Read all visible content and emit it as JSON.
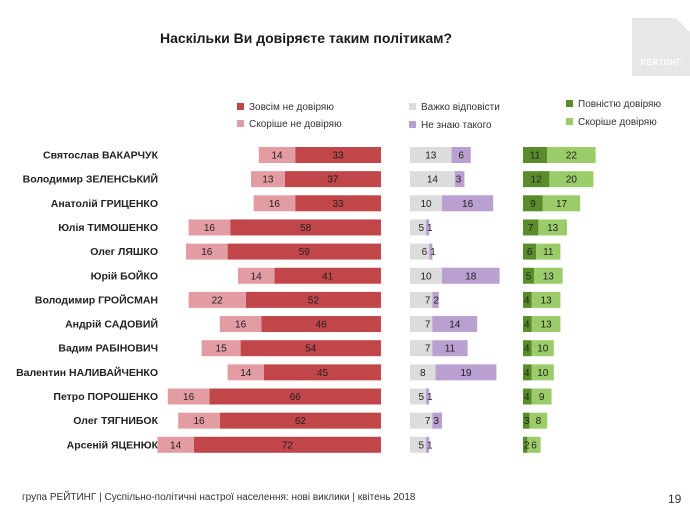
{
  "title": "Наскільки Ви довіряєте таким політикам?",
  "logo_text": "РЕЙТИНГ",
  "footer": "група РЕЙТИНГ  |  Суспільно-політичні настрої населення: нові виклики  |  квітень 2018",
  "page_number": "19",
  "colors": {
    "distrust_full": "#c0464a",
    "distrust_rather": "#e39ca1",
    "hard_to_say": "#dcdcdc",
    "dont_know": "#b9a0d0",
    "trust_full": "#5b8c2c",
    "trust_rather": "#9ccc6a"
  },
  "legend": {
    "distrust_full": "Зовсім не довіряю",
    "distrust_rather": "Скоріше не довіряю",
    "hard_to_say": "Важко відповісти",
    "dont_know": "Не знаю такого",
    "trust_full": "Повністю довіряю",
    "trust_rather": "Скоріше довіряю"
  },
  "chart_data": {
    "type": "bar",
    "title": "Наскільки Ви довіряєте таким політикам?",
    "orientation": "horizontal",
    "stacking": "stacked",
    "categories": [
      "Святослав ВАКАРЧУК",
      "Володимир ЗЕЛЕНСЬКИЙ",
      "Анатолій ГРИЦЕНКО",
      "Юлія ТИМОШЕНКО",
      "Олег ЛЯШКО",
      "Юрій БОЙКО",
      "Володимир ГРОЙСМАН",
      "Андрій САДОВИЙ",
      "Вадим РАБІНОВИЧ",
      "Валентин НАЛИВАЙЧЕНКО",
      "Петро ПОРОШЕНКО",
      "Олег ТЯГНИБОК",
      "Арсеній ЯЦЕНЮК"
    ],
    "series": [
      {
        "name": "Зовсім не довіряю",
        "values": [
          33,
          37,
          33,
          58,
          59,
          41,
          52,
          46,
          54,
          45,
          66,
          62,
          72
        ]
      },
      {
        "name": "Скоріше не довіряю",
        "values": [
          14,
          13,
          16,
          16,
          16,
          14,
          22,
          16,
          15,
          14,
          16,
          16,
          14
        ]
      },
      {
        "name": "Важко відповісти",
        "values": [
          13,
          14,
          10,
          5,
          6,
          10,
          7,
          7,
          7,
          8,
          5,
          7,
          5
        ]
      },
      {
        "name": "Не знаю такого",
        "values": [
          6,
          3,
          16,
          1,
          1,
          18,
          2,
          14,
          11,
          19,
          1,
          3,
          1
        ]
      },
      {
        "name": "Повністю довіряю",
        "values": [
          11,
          12,
          9,
          7,
          6,
          5,
          4,
          4,
          4,
          4,
          4,
          3,
          2
        ]
      },
      {
        "name": "Скоріше довіряю",
        "values": [
          22,
          20,
          17,
          13,
          11,
          13,
          13,
          13,
          10,
          10,
          9,
          8,
          6
        ]
      }
    ]
  }
}
